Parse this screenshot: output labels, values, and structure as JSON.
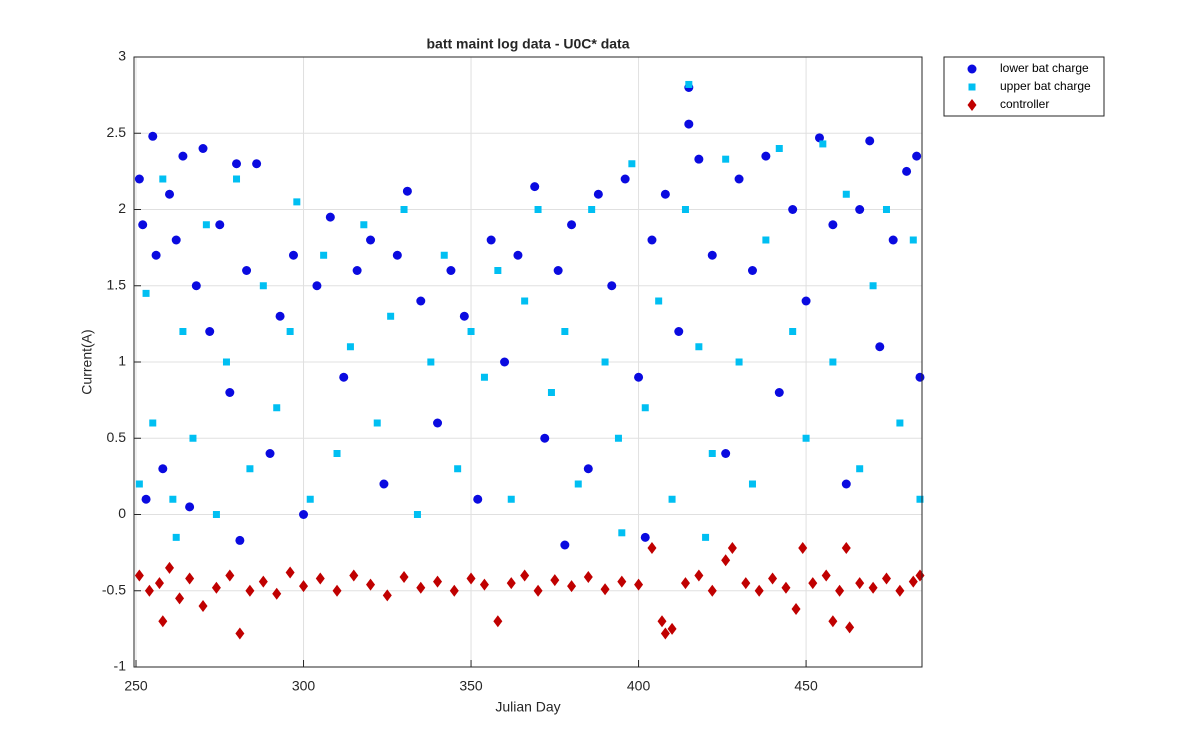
{
  "chart_data": {
    "type": "scatter",
    "title": "batt maint log data - U0C* data",
    "x_label": "Julian Day",
    "y_label": "Current(A)",
    "xlim": [
      249.4,
      484.6
    ],
    "ylim": [
      -1,
      3
    ],
    "xticks": [
      250,
      300,
      350,
      400,
      450
    ],
    "yticks": [
      -1,
      -0.5,
      0,
      0.5,
      1,
      1.5,
      2,
      2.5,
      3
    ],
    "grid": true,
    "legend": "outside-northeast",
    "series": [
      {
        "name": "lower bat charge",
        "color": "#0a0ae0",
        "marker": "circle",
        "x": [
          251,
          252,
          253,
          255,
          256,
          258,
          260,
          262,
          264,
          266,
          268,
          270,
          272,
          275,
          278,
          280,
          283,
          286,
          290,
          293,
          297,
          300,
          304,
          308,
          312,
          316,
          320,
          324,
          328,
          331,
          335,
          340,
          344,
          348,
          352,
          356,
          360,
          364,
          369,
          372,
          376,
          380,
          385,
          388,
          392,
          396,
          400,
          404,
          408,
          412,
          415,
          415,
          418,
          422,
          426,
          430,
          434,
          438,
          442,
          446,
          450,
          454,
          458,
          462,
          466,
          469,
          472,
          476,
          480,
          483,
          484,
          402,
          378,
          281
        ],
        "values": [
          2.2,
          1.9,
          0.1,
          2.48,
          1.7,
          0.3,
          2.1,
          1.8,
          2.35,
          0.05,
          1.5,
          2.4,
          1.2,
          1.9,
          0.8,
          2.3,
          1.6,
          2.3,
          0.4,
          1.3,
          1.7,
          0.0,
          1.5,
          1.95,
          0.9,
          1.6,
          1.8,
          0.2,
          1.7,
          2.12,
          1.4,
          0.6,
          1.6,
          1.3,
          0.1,
          1.8,
          1.0,
          1.7,
          2.15,
          0.5,
          1.6,
          1.9,
          0.3,
          2.1,
          1.5,
          2.2,
          0.9,
          1.8,
          2.1,
          1.2,
          2.8,
          2.56,
          2.33,
          1.7,
          0.4,
          2.2,
          1.6,
          2.35,
          0.8,
          2.0,
          1.4,
          2.47,
          1.9,
          0.2,
          2.0,
          2.45,
          1.1,
          1.8,
          2.25,
          2.35,
          0.9,
          -0.15,
          -0.2,
          -0.17
        ]
      },
      {
        "name": "upper bat charge",
        "color": "#00bff2",
        "marker": "square",
        "x": [
          251,
          253,
          255,
          258,
          261,
          264,
          267,
          271,
          274,
          277,
          280,
          284,
          288,
          292,
          296,
          298,
          302,
          306,
          310,
          314,
          318,
          322,
          326,
          330,
          334,
          338,
          342,
          346,
          350,
          354,
          358,
          362,
          366,
          370,
          374,
          378,
          382,
          386,
          390,
          394,
          398,
          402,
          406,
          410,
          414,
          415,
          418,
          422,
          426,
          430,
          434,
          438,
          442,
          446,
          450,
          455,
          458,
          462,
          466,
          470,
          474,
          478,
          482,
          484,
          262,
          395,
          420
        ],
        "values": [
          0.2,
          1.45,
          0.6,
          2.2,
          0.1,
          1.2,
          0.5,
          1.9,
          0.0,
          1.0,
          2.2,
          0.3,
          1.5,
          0.7,
          1.2,
          2.05,
          0.1,
          1.7,
          0.4,
          1.1,
          1.9,
          0.6,
          1.3,
          2.0,
          0.0,
          1.0,
          1.7,
          0.3,
          1.2,
          0.9,
          1.6,
          0.1,
          1.4,
          2.0,
          0.8,
          1.2,
          0.2,
          2.0,
          1.0,
          0.5,
          2.3,
          0.7,
          1.4,
          0.1,
          2.0,
          2.82,
          1.1,
          0.4,
          2.33,
          1.0,
          0.2,
          1.8,
          2.4,
          1.2,
          0.5,
          2.43,
          1.0,
          2.1,
          0.3,
          1.5,
          2.0,
          0.6,
          1.8,
          0.1,
          -0.15,
          -0.12,
          -0.15
        ]
      },
      {
        "name": "controller",
        "color": "#c00000",
        "marker": "diamond",
        "x": [
          251,
          254,
          257,
          258,
          260,
          263,
          266,
          270,
          274,
          278,
          281,
          284,
          288,
          292,
          296,
          300,
          305,
          310,
          315,
          320,
          325,
          330,
          335,
          340,
          345,
          350,
          354,
          358,
          362,
          366,
          370,
          375,
          380,
          385,
          390,
          395,
          400,
          404,
          407,
          408,
          410,
          414,
          418,
          422,
          426,
          428,
          432,
          436,
          440,
          444,
          447,
          449,
          452,
          456,
          458,
          460,
          462,
          463,
          466,
          470,
          474,
          478,
          482,
          484
        ],
        "values": [
          -0.4,
          -0.5,
          -0.45,
          -0.7,
          -0.35,
          -0.55,
          -0.42,
          -0.6,
          -0.48,
          -0.4,
          -0.78,
          -0.5,
          -0.44,
          -0.52,
          -0.38,
          -0.47,
          -0.42,
          -0.5,
          -0.4,
          -0.46,
          -0.53,
          -0.41,
          -0.48,
          -0.44,
          -0.5,
          -0.42,
          -0.46,
          -0.7,
          -0.45,
          -0.4,
          -0.5,
          -0.43,
          -0.47,
          -0.41,
          -0.49,
          -0.44,
          -0.46,
          -0.22,
          -0.7,
          -0.78,
          -0.75,
          -0.45,
          -0.4,
          -0.5,
          -0.3,
          -0.22,
          -0.45,
          -0.5,
          -0.42,
          -0.48,
          -0.62,
          -0.22,
          -0.45,
          -0.4,
          -0.7,
          -0.5,
          -0.22,
          -0.74,
          -0.45,
          -0.48,
          -0.42,
          -0.5,
          -0.44,
          -0.4
        ]
      }
    ]
  }
}
